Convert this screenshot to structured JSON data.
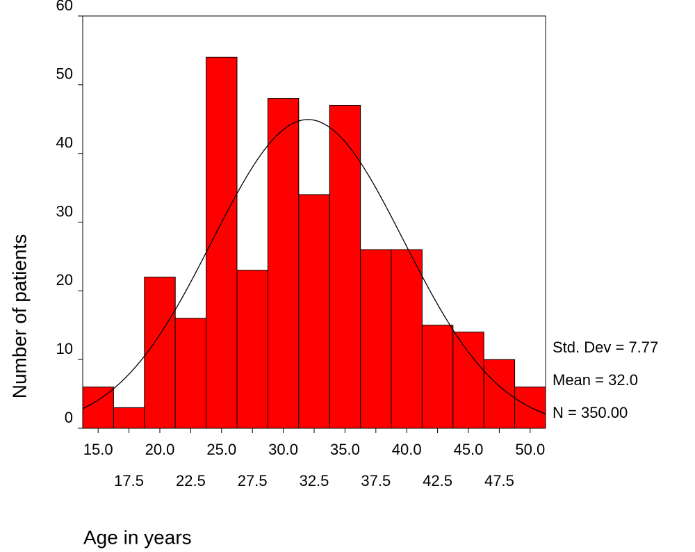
{
  "chart_data": {
    "type": "histogram",
    "x_label": "Age in years",
    "y_label": "Number of patients",
    "bins": [
      13.75,
      16.25,
      18.75,
      21.25,
      23.75,
      26.25,
      28.75,
      31.25,
      33.75,
      36.25,
      38.75,
      41.25,
      43.75,
      46.25,
      48.75,
      51.25
    ],
    "values": [
      6,
      3,
      22,
      16,
      54,
      23,
      48,
      34,
      47,
      26,
      26,
      15,
      14,
      10,
      6
    ],
    "color": "#ff0000",
    "xlim": [
      13.75,
      51.25
    ],
    "xticks": [
      {
        "value": 15,
        "label": "15.0"
      },
      {
        "value": 17.5,
        "label": "17.5"
      },
      {
        "value": 20,
        "label": "20.0"
      },
      {
        "value": 22.5,
        "label": "22.5"
      },
      {
        "value": 25,
        "label": "25.0"
      },
      {
        "value": 27.5,
        "label": "27.5"
      },
      {
        "value": 30,
        "label": "30.0"
      },
      {
        "value": 32.5,
        "label": "32.5"
      },
      {
        "value": 35,
        "label": "35.0"
      },
      {
        "value": 37.5,
        "label": "37.5"
      },
      {
        "value": 40,
        "label": "40.0"
      },
      {
        "value": 42.5,
        "label": "42.5"
      },
      {
        "value": 45,
        "label": "45.0"
      },
      {
        "value": 47.5,
        "label": "47.5"
      },
      {
        "value": 50,
        "label": "50.0"
      }
    ],
    "ylim": [
      0,
      60
    ],
    "yticks": [
      0,
      10,
      20,
      30,
      40,
      50,
      60
    ],
    "stats": [
      {
        "value": 7.77,
        "label": "Std. Dev = 7.77"
      },
      {
        "value": 32.0,
        "label": "Mean = 32.0"
      },
      {
        "value": 350,
        "label": "N = 350.00"
      }
    ]
  }
}
